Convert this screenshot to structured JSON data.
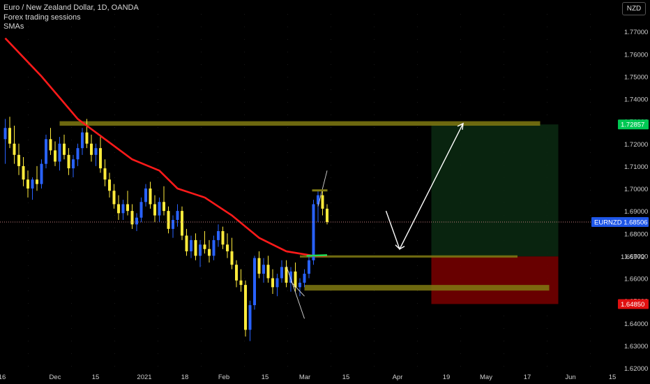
{
  "legend": {
    "title": "Euro / New Zealand Dollar, 1D, OANDA",
    "line2": "Forex trading sessions",
    "line3": "SMAs"
  },
  "currency_button": "NZD",
  "colors": {
    "background": "#000000",
    "up": "#2962ff",
    "down": "#ffeb3b",
    "sma": "#ff1a1a",
    "zone": "#807a12",
    "profit_zone": "#0b2a12",
    "loss_zone": "#6e0000",
    "target_tag": "#00c853",
    "stop_tag": "#e01010",
    "price_tag": "#1e56e8",
    "entry_tick": "#22dd55",
    "arrow": "#ffffff"
  },
  "chart_data": {
    "type": "candlestick",
    "symbol": "EURNZD",
    "timeframe": "1D",
    "y_axis": {
      "range": [
        1.62,
        1.78
      ],
      "ticks": [
        "1.77000",
        "1.76000",
        "1.75000",
        "1.74000",
        "1.73000",
        "1.72000",
        "1.71000",
        "1.70000",
        "1.69000",
        "1.68000",
        "1.67000",
        "1.66000",
        "1.65000",
        "1.64000",
        "1.63000",
        "1.62000"
      ]
    },
    "x_axis": {
      "labels": [
        "16",
        "Dec",
        "15",
        "2021",
        "18",
        "Feb",
        "15",
        "Mar",
        "15",
        "Apr",
        "19",
        "May",
        "17",
        "Jun",
        "15"
      ]
    },
    "price_labels": [
      {
        "text": "1.72857",
        "value": 1.72857,
        "kind": "target"
      },
      {
        "text": "EURNZD  1.68506",
        "value": 1.68506,
        "kind": "last"
      },
      {
        "text": "1.66972",
        "value": 1.66972,
        "kind": "entry"
      },
      {
        "text": "1.64850",
        "value": 1.6485,
        "kind": "stop"
      }
    ],
    "candles": [
      [
        1.722,
        1.731,
        1.711,
        1.727
      ],
      [
        1.727,
        1.732,
        1.718,
        1.72
      ],
      [
        1.72,
        1.728,
        1.711,
        1.715
      ],
      [
        1.715,
        1.72,
        1.706,
        1.71
      ],
      [
        1.71,
        1.714,
        1.701,
        1.704
      ],
      [
        1.704,
        1.708,
        1.696,
        1.7
      ],
      [
        1.7,
        1.705,
        1.695,
        1.704
      ],
      [
        1.704,
        1.71,
        1.699,
        1.702
      ],
      [
        1.702,
        1.713,
        1.7,
        1.711
      ],
      [
        1.711,
        1.724,
        1.709,
        1.722
      ],
      [
        1.722,
        1.727,
        1.715,
        1.717
      ],
      [
        1.717,
        1.721,
        1.71,
        1.712
      ],
      [
        1.712,
        1.723,
        1.708,
        1.72
      ],
      [
        1.72,
        1.724,
        1.713,
        1.715
      ],
      [
        1.715,
        1.718,
        1.706,
        1.709
      ],
      [
        1.709,
        1.715,
        1.705,
        1.713
      ],
      [
        1.713,
        1.72,
        1.71,
        1.718
      ],
      [
        1.718,
        1.727,
        1.715,
        1.725
      ],
      [
        1.725,
        1.731,
        1.718,
        1.72
      ],
      [
        1.72,
        1.724,
        1.712,
        1.715
      ],
      [
        1.715,
        1.72,
        1.71,
        1.718
      ],
      [
        1.718,
        1.723,
        1.707,
        1.709
      ],
      [
        1.709,
        1.713,
        1.701,
        1.704
      ],
      [
        1.704,
        1.707,
        1.696,
        1.699
      ],
      [
        1.699,
        1.702,
        1.691,
        1.693
      ],
      [
        1.693,
        1.697,
        1.686,
        1.689
      ],
      [
        1.689,
        1.695,
        1.686,
        1.693
      ],
      [
        1.693,
        1.699,
        1.688,
        1.69
      ],
      [
        1.69,
        1.693,
        1.682,
        1.684
      ],
      [
        1.684,
        1.689,
        1.681,
        1.687
      ],
      [
        1.687,
        1.696,
        1.685,
        1.694
      ],
      [
        1.694,
        1.702,
        1.692,
        1.7
      ],
      [
        1.7,
        1.703,
        1.691,
        1.693
      ],
      [
        1.693,
        1.697,
        1.685,
        1.688
      ],
      [
        1.688,
        1.696,
        1.685,
        1.694
      ],
      [
        1.694,
        1.701,
        1.688,
        1.69
      ],
      [
        1.69,
        1.692,
        1.68,
        1.682
      ],
      [
        1.682,
        1.688,
        1.678,
        1.686
      ],
      [
        1.686,
        1.693,
        1.683,
        1.69
      ],
      [
        1.69,
        1.692,
        1.677,
        1.679
      ],
      [
        1.679,
        1.682,
        1.67,
        1.672
      ],
      [
        1.672,
        1.679,
        1.669,
        1.677
      ],
      [
        1.677,
        1.68,
        1.668,
        1.67
      ],
      [
        1.67,
        1.677,
        1.665,
        1.675
      ],
      [
        1.675,
        1.681,
        1.671,
        1.673
      ],
      [
        1.673,
        1.677,
        1.667,
        1.67
      ],
      [
        1.67,
        1.679,
        1.668,
        1.677
      ],
      [
        1.677,
        1.684,
        1.674,
        1.681
      ],
      [
        1.681,
        1.683,
        1.673,
        1.675
      ],
      [
        1.675,
        1.68,
        1.669,
        1.672
      ],
      [
        1.672,
        1.678,
        1.664,
        1.666
      ],
      [
        1.666,
        1.668,
        1.656,
        1.659
      ],
      [
        1.659,
        1.664,
        1.654,
        1.657
      ],
      [
        1.657,
        1.659,
        1.634,
        1.637
      ],
      [
        1.637,
        1.65,
        1.632,
        1.648
      ],
      [
        1.648,
        1.67,
        1.646,
        1.669
      ],
      [
        1.669,
        1.672,
        1.66,
        1.662
      ],
      [
        1.662,
        1.669,
        1.658,
        1.666
      ],
      [
        1.666,
        1.67,
        1.658,
        1.66
      ],
      [
        1.66,
        1.664,
        1.653,
        1.656
      ],
      [
        1.656,
        1.662,
        1.652,
        1.66
      ],
      [
        1.66,
        1.668,
        1.658,
        1.665
      ],
      [
        1.665,
        1.668,
        1.656,
        1.658
      ],
      [
        1.658,
        1.665,
        1.654,
        1.663
      ],
      [
        1.663,
        1.667,
        1.654,
        1.656
      ],
      [
        1.656,
        1.66,
        1.652,
        1.658
      ],
      [
        1.658,
        1.664,
        1.656,
        1.662
      ],
      [
        1.662,
        1.67,
        1.66,
        1.668
      ],
      [
        1.668,
        1.695,
        1.666,
        1.693
      ],
      [
        1.693,
        1.699,
        1.685,
        1.697
      ],
      [
        1.697,
        1.699,
        1.688,
        1.691
      ],
      [
        1.691,
        1.693,
        1.684,
        1.685
      ]
    ],
    "sma": {
      "x_index": [
        0,
        8,
        16,
        22,
        28,
        34,
        38,
        44,
        50,
        56,
        62,
        68,
        71
      ],
      "values": [
        1.767,
        1.75,
        1.731,
        1.722,
        1.713,
        1.708,
        1.7,
        1.696,
        1.688,
        1.678,
        1.672,
        1.67,
        1.67
      ]
    },
    "zones": [
      {
        "name": "resistance",
        "from_index": 12,
        "to_index": 118,
        "low": 1.728,
        "high": 1.73
      },
      {
        "name": "support",
        "from_index": 65,
        "to_index": 113,
        "low": 1.6692,
        "high": 1.6702
      },
      {
        "name": "support-box",
        "from_index": 66,
        "to_index": 120,
        "low": 1.6545,
        "high": 1.657
      }
    ],
    "position": {
      "entry": 1.66972,
      "target": 1.72857,
      "stop": 1.6485,
      "from_index": 94,
      "to_index": 122
    },
    "arrow_path": [
      [
        84,
        1.69
      ],
      [
        87,
        1.673
      ],
      [
        101,
        1.729
      ]
    ]
  }
}
